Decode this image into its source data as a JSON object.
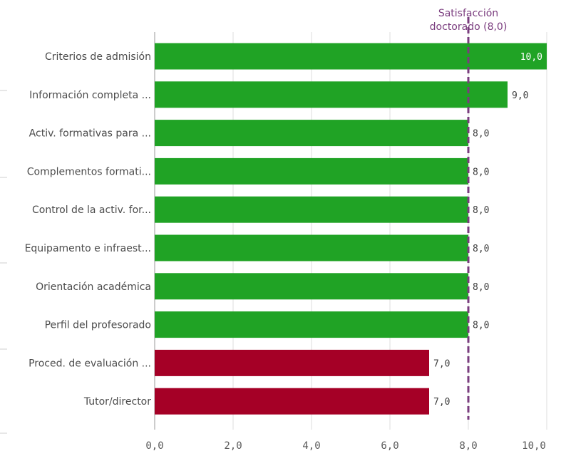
{
  "chart_data": {
    "type": "bar",
    "orientation": "horizontal",
    "categories": [
      "Criterios de admisión",
      "Información completa ...",
      "Activ. formativas para ...",
      "Complementos formati...",
      "Control de la activ. for...",
      "Equipamento e infraest...",
      "Orientación académica",
      "Perfil del profesorado",
      "Proced. de evaluación ...",
      "Tutor/director"
    ],
    "values": [
      10,
      9,
      8,
      8,
      8,
      8,
      8,
      8,
      7,
      7
    ],
    "value_labels": [
      "10,0",
      "9,0",
      "8,0",
      "8,0",
      "8,0",
      "8,0",
      "8,0",
      "8,0",
      "7,0",
      "7,0"
    ],
    "xlim": [
      0,
      10
    ],
    "x_ticks": [
      0,
      2,
      4,
      6,
      8,
      10
    ],
    "x_tick_labels": [
      "0,0",
      "2,0",
      "4,0",
      "6,0",
      "8,0",
      "10,0"
    ],
    "grid": true,
    "colors": {
      "above": "#20a325",
      "below": "#a50026",
      "reference": "#7a3c7e"
    },
    "reference_line": {
      "value": 8,
      "label_lines": [
        "Satisfacción",
        "doctorado (8,0)"
      ]
    }
  }
}
